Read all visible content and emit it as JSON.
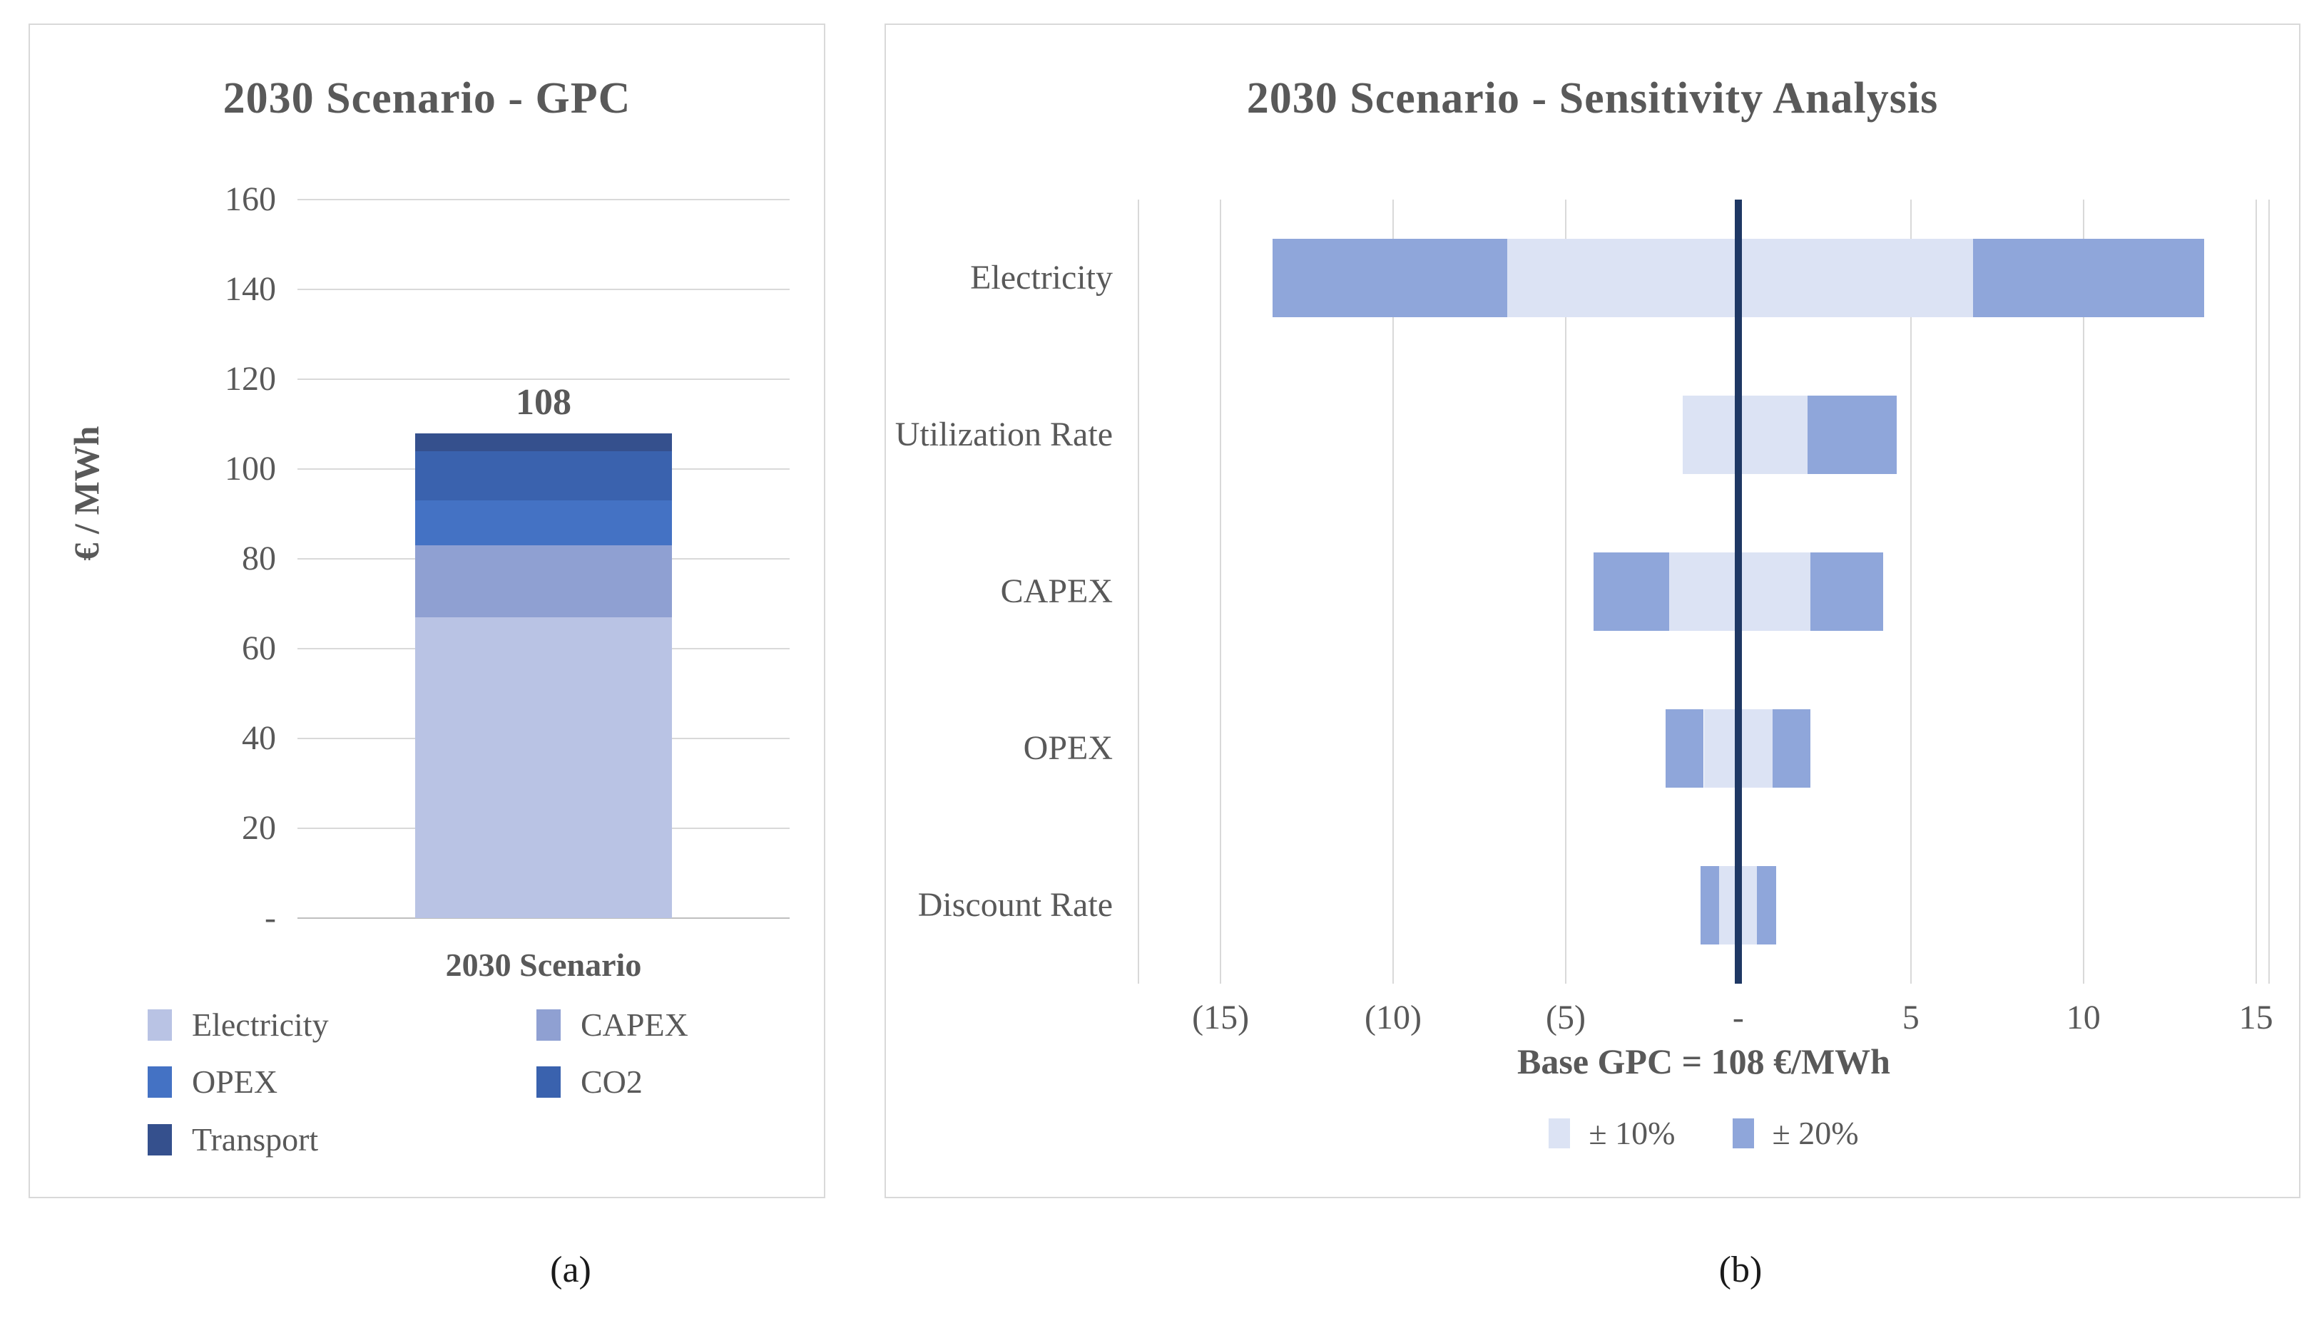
{
  "figure": {
    "caption_a": "(a)",
    "caption_b": "(b)",
    "text_color": "#595959",
    "grid_color": "#D9D9D9",
    "axis_line_color": "#BFBFBF",
    "border_color": "#D9D9D9",
    "background": "#FFFFFF"
  },
  "chart_data": [
    {
      "id": "gpc",
      "type": "bar",
      "title": "2030 Scenario - GPC",
      "ylabel": "€ / MWh",
      "categories": [
        "2030 Scenario"
      ],
      "ylim": [
        0,
        160
      ],
      "grid": true,
      "legend_position": "bottom",
      "total_label": "108",
      "total_value": 108,
      "yticks": [
        {
          "value": 160,
          "label": "160"
        },
        {
          "value": 140,
          "label": "140"
        },
        {
          "value": 120,
          "label": "120"
        },
        {
          "value": 100,
          "label": "100"
        },
        {
          "value": 80,
          "label": "80"
        },
        {
          "value": 60,
          "label": "60"
        },
        {
          "value": 40,
          "label": "40"
        },
        {
          "value": 20,
          "label": "20"
        },
        {
          "value": 0,
          "label": "-"
        }
      ],
      "series": [
        {
          "name": "Electricity",
          "values": [
            67
          ],
          "color": "#B9C3E4"
        },
        {
          "name": "CAPEX",
          "values": [
            16
          ],
          "color": "#8FA0D2"
        },
        {
          "name": "OPEX",
          "values": [
            10
          ],
          "color": "#4472C4"
        },
        {
          "name": "CO2",
          "values": [
            11
          ],
          "color": "#3A62AE"
        },
        {
          "name": "Transport",
          "values": [
            4
          ],
          "color": "#35508D"
        }
      ],
      "legend_columns": [
        [
          "Electricity",
          "OPEX",
          "Transport"
        ],
        [
          "CAPEX",
          "CO2"
        ]
      ]
    },
    {
      "id": "sensitivity",
      "type": "tornado",
      "title": "2030 Scenario - Sensitivity Analysis",
      "xlabel": "Base GPC = 108 €/MWh",
      "xlim": [
        -17.4,
        15.4
      ],
      "grid": true,
      "baseline_value": 0,
      "baseline_color": "#1F3864",
      "xticks": [
        {
          "value": -15,
          "label": "(15)"
        },
        {
          "value": -10,
          "label": "(10)"
        },
        {
          "value": -5,
          "label": "(5)"
        },
        {
          "value": 0,
          "label": "-"
        },
        {
          "value": 5,
          "label": "5"
        },
        {
          "value": 10,
          "label": "10"
        },
        {
          "value": 15,
          "label": "15"
        }
      ],
      "legend": [
        {
          "label": "± 10%",
          "color": "#DCE3F4"
        },
        {
          "label": "± 20%",
          "color": "#8FA6DA"
        }
      ],
      "rows": [
        {
          "label": "Electricity",
          "pm10": [
            -6.7,
            6.8
          ],
          "pm20": [
            [
              -13.5,
              -6.7
            ],
            [
              6.8,
              13.5
            ]
          ]
        },
        {
          "label": "Utilization Rate",
          "pm10": [
            -1.6,
            2.0
          ],
          "pm20": [
            [
              2.0,
              4.6
            ]
          ]
        },
        {
          "label": "CAPEX",
          "pm10": [
            -2.0,
            2.1
          ],
          "pm20": [
            [
              -4.2,
              -2.0
            ],
            [
              2.1,
              4.2
            ]
          ]
        },
        {
          "label": "OPEX",
          "pm10": [
            -1.0,
            1.0
          ],
          "pm20": [
            [
              -2.1,
              -1.0
            ],
            [
              1.0,
              2.1
            ]
          ]
        },
        {
          "label": "Discount Rate",
          "pm10": [
            -0.55,
            0.55
          ],
          "pm20": [
            [
              -1.1,
              -0.55
            ],
            [
              0.55,
              1.1
            ]
          ]
        }
      ]
    }
  ]
}
